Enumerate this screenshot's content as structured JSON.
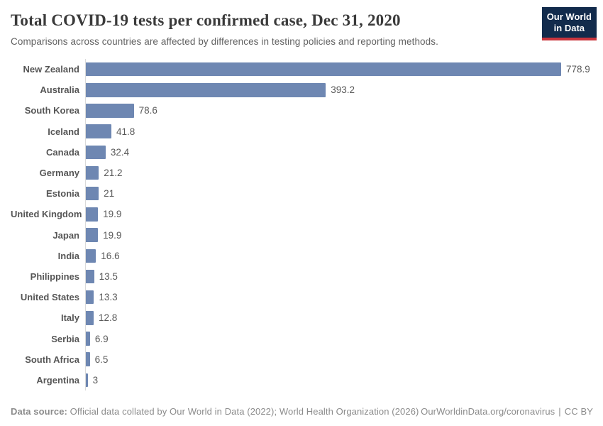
{
  "header": {
    "title": "Total COVID-19 tests per confirmed case, Dec 31, 2020",
    "subtitle": "Comparisons across countries are affected by differences in testing policies and reporting methods.",
    "logo": {
      "line1": "Our World",
      "line2": "in Data"
    }
  },
  "chart_data": {
    "type": "bar",
    "orientation": "horizontal",
    "title": "Total COVID-19 tests per confirmed case, Dec 31, 2020",
    "categories": [
      "New Zealand",
      "Australia",
      "South Korea",
      "Iceland",
      "Canada",
      "Germany",
      "Estonia",
      "United Kingdom",
      "Japan",
      "India",
      "Philippines",
      "United States",
      "Italy",
      "Serbia",
      "South Africa",
      "Argentina"
    ],
    "values": [
      778.9,
      393.2,
      78.6,
      41.8,
      32.4,
      21.2,
      21,
      19.9,
      19.9,
      16.6,
      13.5,
      13.3,
      12.8,
      6.9,
      6.5,
      3
    ],
    "value_labels": [
      "778.9",
      "393.2",
      "78.6",
      "41.8",
      "32.4",
      "21.2",
      "21",
      "19.9",
      "19.9",
      "16.6",
      "13.5",
      "13.3",
      "12.8",
      "6.9",
      "6.5",
      "3"
    ],
    "xlabel": "",
    "ylabel": "",
    "xlim": [
      0,
      778.9
    ],
    "grid": false,
    "legend": false
  },
  "footer": {
    "source_label": "Data source:",
    "source_text": "Official data collated by Our World in Data (2022); World Health Organization (2026)",
    "url": "OurWorldinData.org/coronavirus",
    "separator": "|",
    "license": "CC BY"
  },
  "colors": {
    "bar": "#6e87b2",
    "axis": "#dadada",
    "title": "#3a3a3a",
    "subtitle": "#616161",
    "label": "#565656",
    "value": "#595959",
    "footer_text": "#8b8b8b",
    "logo_bg": "#122b4c",
    "logo_stripe": "#c9353d"
  }
}
